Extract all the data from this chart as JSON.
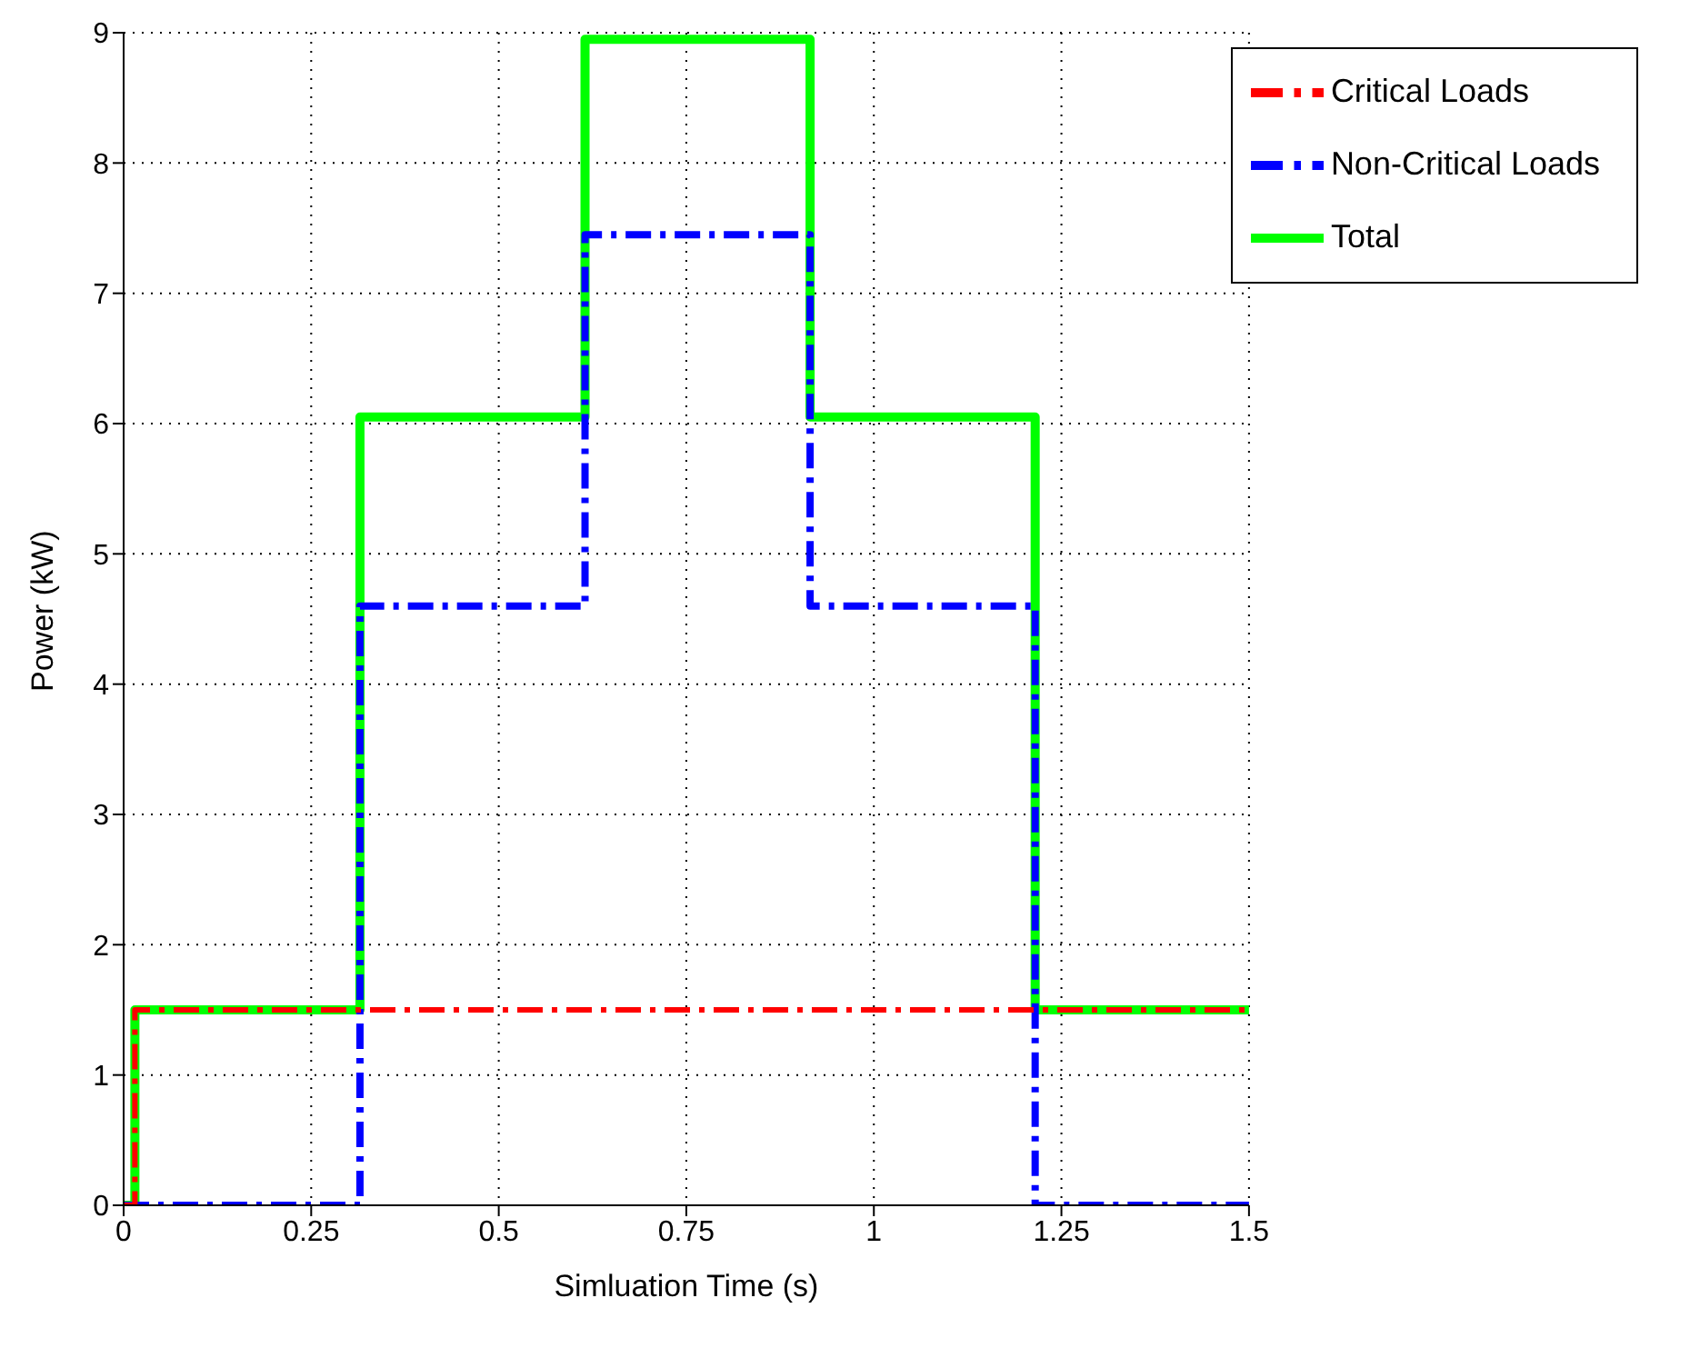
{
  "chart_data": {
    "type": "step",
    "xlabel": "Simluation Time (s)",
    "ylabel": "Power (kW)",
    "x": [
      0,
      0.015,
      0.315,
      0.615,
      0.915,
      1.215,
      1.5
    ],
    "series": [
      {
        "name": "Total",
        "color": "#00ff00",
        "line_style": "solid",
        "values": [
          0,
          1.5,
          6.05,
          8.95,
          6.05,
          1.5,
          1.5
        ]
      },
      {
        "name": "Non-Critical Loads",
        "color": "#0000ff",
        "line_style": "dashed",
        "values": [
          0,
          0,
          4.6,
          7.45,
          4.6,
          0,
          0
        ]
      },
      {
        "name": "Critical Loads",
        "color": "#ff0000",
        "line_style": "dashed",
        "values": [
          0,
          1.5,
          1.5,
          1.5,
          1.5,
          1.5,
          1.5
        ]
      }
    ],
    "xlim": [
      0,
      1.5
    ],
    "xticks": [
      0,
      0.25,
      0.5,
      0.75,
      1,
      1.25,
      1.5
    ],
    "ylim": [
      0,
      9
    ],
    "yticks": [
      0,
      1,
      2,
      3,
      4,
      5,
      6,
      7,
      8,
      9
    ],
    "grid": true,
    "legend": "top right",
    "marker": "none"
  }
}
